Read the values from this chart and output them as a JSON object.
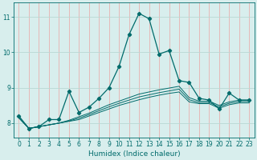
{
  "title": "",
  "xlabel": "Humidex (Indice chaleur)",
  "bg_color": "#d8eeed",
  "grid_color_h": "#b8d8d4",
  "grid_color_v": "#e8b0b0",
  "line_color": "#006b6b",
  "xlim": [
    -0.5,
    23.5
  ],
  "ylim": [
    7.6,
    11.4
  ],
  "yticks": [
    8,
    9,
    10,
    11
  ],
  "xticks": [
    0,
    1,
    2,
    3,
    4,
    5,
    6,
    7,
    8,
    9,
    10,
    11,
    12,
    13,
    14,
    15,
    16,
    17,
    18,
    19,
    20,
    21,
    22,
    23
  ],
  "series_main": [
    8.2,
    7.85,
    7.9,
    8.1,
    8.1,
    8.9,
    8.3,
    8.45,
    8.7,
    9.0,
    9.6,
    10.5,
    11.1,
    10.95,
    9.95,
    10.05,
    9.2,
    9.15,
    8.7,
    8.65,
    8.4,
    8.85,
    8.65,
    8.65
  ],
  "series_flat1": [
    8.15,
    7.85,
    7.9,
    7.95,
    8.0,
    8.05,
    8.1,
    8.2,
    8.3,
    8.4,
    8.5,
    8.58,
    8.66,
    8.73,
    8.79,
    8.84,
    8.88,
    8.6,
    8.55,
    8.55,
    8.42,
    8.52,
    8.57,
    8.57
  ],
  "series_flat2": [
    8.15,
    7.85,
    7.9,
    7.95,
    8.0,
    8.08,
    8.18,
    8.28,
    8.4,
    8.52,
    8.62,
    8.72,
    8.82,
    8.88,
    8.94,
    8.99,
    9.04,
    8.72,
    8.62,
    8.62,
    8.5,
    8.6,
    8.65,
    8.65
  ],
  "series_flat3": [
    8.15,
    7.85,
    7.9,
    7.95,
    8.0,
    8.06,
    8.14,
    8.24,
    8.35,
    8.46,
    8.56,
    8.65,
    8.74,
    8.8,
    8.86,
    8.91,
    8.96,
    8.66,
    8.58,
    8.58,
    8.46,
    8.56,
    8.61,
    8.61
  ]
}
